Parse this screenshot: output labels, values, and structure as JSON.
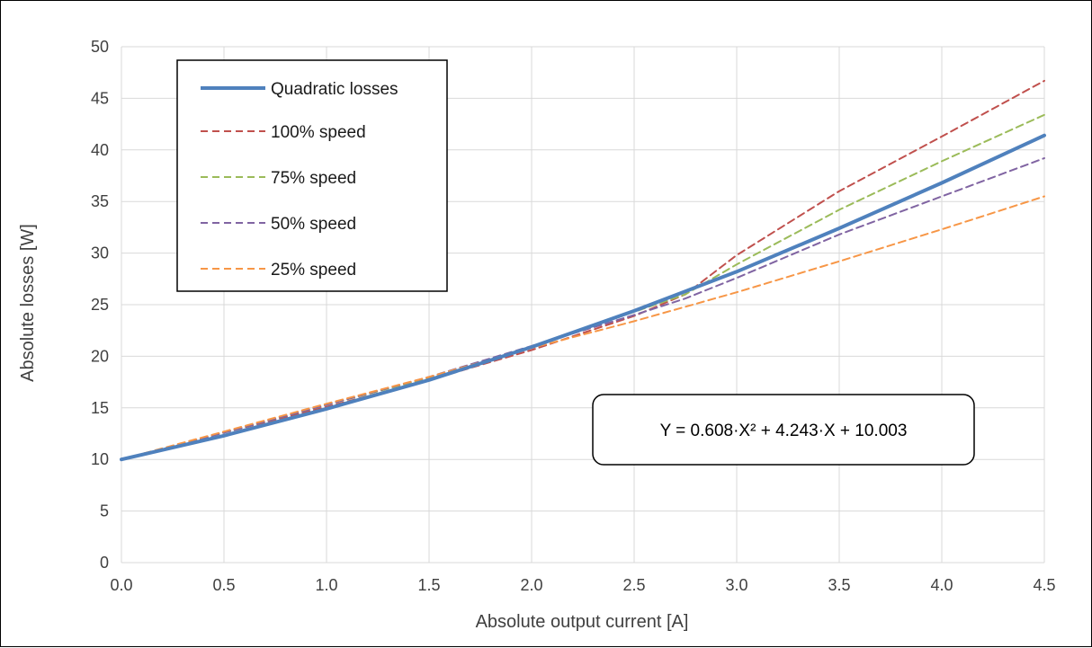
{
  "chart_data": {
    "type": "line",
    "xlabel": "Absolute output current [A]",
    "ylabel": "Absolute losses [W]",
    "xlim": [
      0,
      4.5
    ],
    "ylim": [
      0,
      50
    ],
    "x_ticks": [
      "0.0",
      "0.5",
      "1.0",
      "1.5",
      "2.0",
      "2.5",
      "3.0",
      "3.5",
      "4.0",
      "4.5"
    ],
    "y_ticks": [
      "0",
      "5",
      "10",
      "15",
      "20",
      "25",
      "30",
      "35",
      "40",
      "45",
      "50"
    ],
    "grid": true,
    "legend_position": "top-left",
    "series": [
      {
        "name": "Quadratic losses",
        "color": "#4f81bd",
        "style": "solid",
        "x": [
          0,
          0.5,
          1.0,
          1.5,
          2.0,
          2.5,
          3.0,
          3.5,
          4.0,
          4.5
        ],
        "y": [
          10.0,
          12.3,
          14.9,
          17.7,
          20.9,
          24.4,
          28.2,
          32.4,
          36.8,
          41.4
        ]
      },
      {
        "name": "100% speed",
        "color": "#c0504d",
        "style": "dashed",
        "x": [
          0,
          0.5,
          1.0,
          1.5,
          2.0,
          2.5,
          2.75,
          3.0,
          3.5,
          4.0,
          4.5
        ],
        "y": [
          10.0,
          12.6,
          15.1,
          17.7,
          20.6,
          23.9,
          26.0,
          29.8,
          36.0,
          41.3,
          46.7
        ]
      },
      {
        "name": "75% speed",
        "color": "#9bbb59",
        "style": "dashed",
        "x": [
          0,
          0.5,
          1.0,
          1.5,
          2.0,
          2.5,
          2.75,
          3.0,
          3.5,
          4.0,
          4.5
        ],
        "y": [
          10.0,
          12.6,
          15.3,
          17.9,
          20.9,
          24.3,
          26.0,
          28.9,
          34.2,
          38.9,
          43.4
        ]
      },
      {
        "name": "50% speed",
        "color": "#8064a2",
        "style": "dashed",
        "x": [
          0,
          0.5,
          1.0,
          1.5,
          2.0,
          2.5,
          2.75,
          3.0,
          3.5,
          4.0,
          4.5
        ],
        "y": [
          10.0,
          12.6,
          15.3,
          18.0,
          21.0,
          24.0,
          25.6,
          27.6,
          31.8,
          35.5,
          39.2
        ]
      },
      {
        "name": "25% speed",
        "color": "#f79646",
        "style": "dashed",
        "x": [
          0,
          0.5,
          1.0,
          1.5,
          2.0,
          2.5,
          3.0,
          3.5,
          4.0,
          4.5
        ],
        "y": [
          10.0,
          12.7,
          15.4,
          18.0,
          20.8,
          23.4,
          26.2,
          29.2,
          32.3,
          35.5
        ]
      }
    ],
    "annotations": [
      {
        "text": "Y = 0.608·X² + 4.243·X + 10.003"
      }
    ]
  }
}
